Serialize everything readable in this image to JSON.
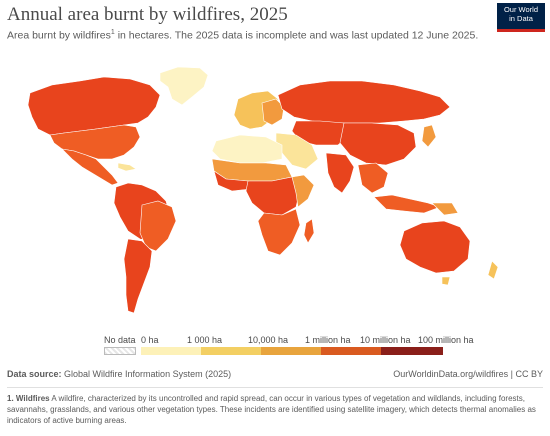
{
  "header": {
    "title": "Annual area burnt by wildfires, 2025",
    "subtitle_main": "Area burnt by wildfires",
    "subtitle_sup": "1",
    "subtitle_rest": " in hectares. The 2025 data is incomplete and was last updated 12 June 2025."
  },
  "logo": {
    "line1": "Our World",
    "line2": "in Data",
    "bg_color": "#002147",
    "bar_color": "#ce261e"
  },
  "legend": {
    "no_data_label": "No data",
    "ticks": [
      "0 ha",
      "1 000 ha",
      "10,000 ha",
      "1 million ha",
      "10 million ha",
      "100 million ha"
    ],
    "colors": [
      "#fdf1b8",
      "#f3cf63",
      "#e8a43d",
      "#d95a20",
      "#8a1f1a"
    ]
  },
  "colors": {
    "ocean": "#ffffff",
    "very_high": "#e8441d",
    "high": "#ef5d24",
    "medium": "#f29a3e",
    "low": "#f6c25a",
    "very_low": "#fbe49a",
    "minimal": "#fdf3c4",
    "border": "#ffffff"
  },
  "footer": {
    "source_label": "Data source:",
    "source_text": " Global Wildfire Information System (2025)",
    "credit": "OurWorldinData.org/wildfires | CC BY",
    "footnote_label": "1. Wildfires",
    "footnote_text": " A wildfire, characterized by its uncontrolled and rapid spread, can occur in various types of vegetation and wildlands, including forests, savannahs, grasslands, and various other vegetation types. These incidents are identified using satellite imagery, which detects thermal anomalies as indicators of active burning areas."
  }
}
